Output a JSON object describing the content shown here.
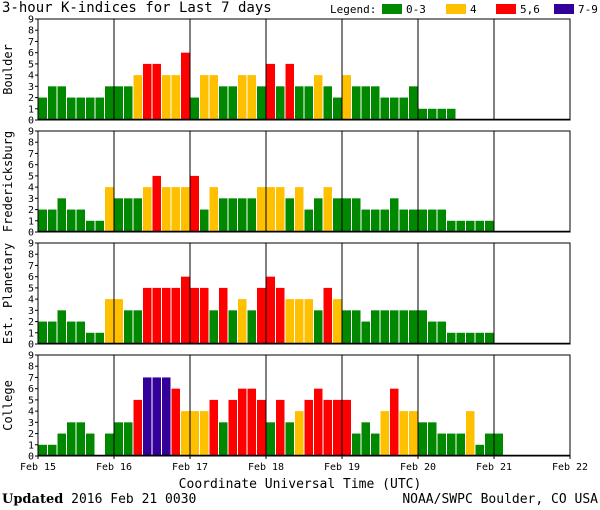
{
  "page": {
    "title": "3-hour K-indices for Last 7 days",
    "legend_label": "Legend:",
    "updated_label": "Updated",
    "updated_value": "2016 Feb 21 0030",
    "credit": "NOAA/SWPC Boulder, CO USA"
  },
  "legend": [
    {
      "label": "0-3",
      "color": "#008800"
    },
    {
      "label": "4",
      "color": "#ffc000"
    },
    {
      "label": "5,6",
      "color": "#ff0000"
    },
    {
      "label": "7-9",
      "color": "#330099"
    }
  ],
  "chart_data": {
    "type": "bar",
    "title": "3-hour K-indices for Last 7 days",
    "xlabel": "Coordinate Universal Time (UTC)",
    "x_ticks": [
      "Feb 15",
      "Feb 16",
      "Feb 17",
      "Feb 18",
      "Feb 19",
      "Feb 20",
      "Feb 21",
      "Feb 22"
    ],
    "ylim": [
      0,
      9
    ],
    "y_ticks": [
      "0",
      "1",
      "2",
      "3",
      "4",
      "5",
      "6",
      "7",
      "8",
      "9"
    ],
    "bars_per_day": 8,
    "color_scale": {
      "0-3": "#008800",
      "4": "#ffc000",
      "5,6": "#ff0000",
      "7-9": "#330099"
    },
    "series": [
      {
        "name": "Boulder",
        "values": [
          2,
          3,
          3,
          2,
          2,
          2,
          2,
          3,
          3,
          3,
          4,
          5,
          5,
          4,
          4,
          6,
          2,
          4,
          4,
          3,
          3,
          4,
          4,
          3,
          5,
          3,
          5,
          3,
          3,
          4,
          3,
          2,
          4,
          3,
          3,
          3,
          2,
          2,
          2,
          3,
          1,
          1,
          1,
          1,
          0,
          0,
          0,
          0,
          0,
          0,
          0,
          0,
          0,
          0,
          0,
          0
        ]
      },
      {
        "name": "Fredericksburg",
        "values": [
          2,
          2,
          3,
          2,
          2,
          1,
          1,
          4,
          3,
          3,
          3,
          4,
          5,
          4,
          4,
          4,
          5,
          2,
          4,
          3,
          3,
          3,
          3,
          4,
          4,
          4,
          3,
          4,
          2,
          3,
          4,
          3,
          3,
          3,
          2,
          2,
          2,
          3,
          2,
          2,
          2,
          2,
          2,
          1,
          1,
          1,
          1,
          1,
          0,
          0,
          0,
          0,
          0,
          0,
          0,
          0
        ]
      },
      {
        "name": "Est. Planetary",
        "values": [
          2,
          2,
          3,
          2,
          2,
          1,
          1,
          4,
          4,
          3,
          3,
          5,
          5,
          5,
          5,
          6,
          5,
          5,
          3,
          5,
          3,
          4,
          3,
          5,
          6,
          5,
          4,
          4,
          4,
          3,
          5,
          4,
          3,
          3,
          2,
          3,
          3,
          3,
          3,
          3,
          3,
          2,
          2,
          1,
          1,
          1,
          1,
          1,
          0,
          0,
          0,
          0,
          0,
          0,
          0,
          0
        ]
      },
      {
        "name": "College",
        "values": [
          1,
          1,
          2,
          3,
          3,
          2,
          0,
          2,
          3,
          3,
          5,
          7,
          7,
          7,
          6,
          4,
          4,
          4,
          5,
          3,
          5,
          6,
          6,
          5,
          3,
          5,
          3,
          4,
          5,
          6,
          5,
          5,
          5,
          2,
          3,
          2,
          4,
          6,
          4,
          4,
          3,
          3,
          2,
          2,
          2,
          4,
          1,
          2,
          2,
          0,
          0,
          0,
          0,
          0,
          0,
          0
        ]
      }
    ]
  }
}
